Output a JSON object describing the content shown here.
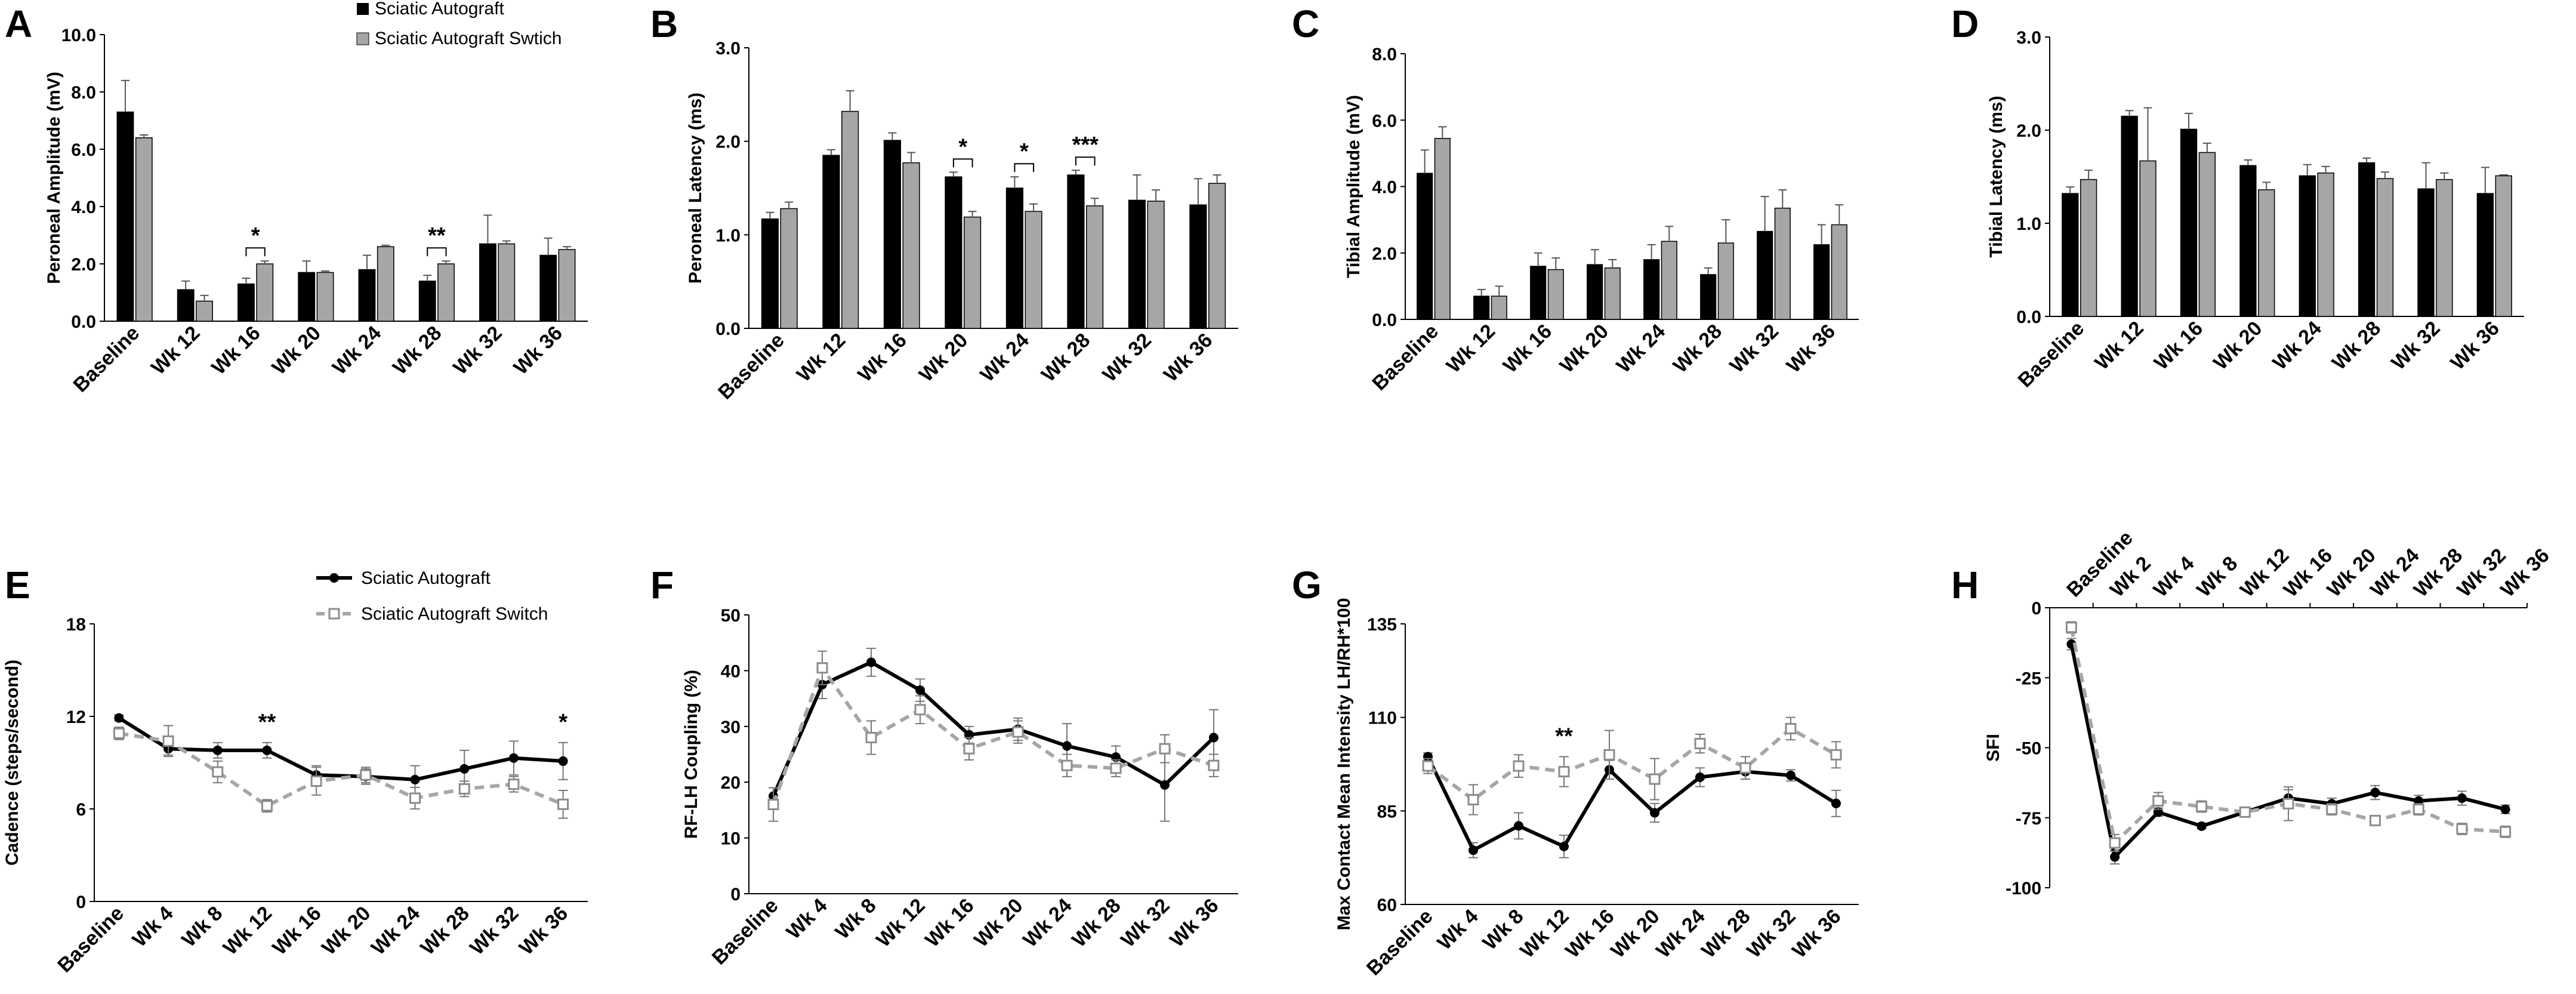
{
  "legend_top": {
    "series": [
      {
        "name": "Sciatic Autograft",
        "color": "#000000"
      },
      {
        "name": "Sciatic Autograft Swtich",
        "color": "#a6a6a6"
      }
    ]
  },
  "legend_bottom": {
    "series": [
      {
        "name": "Sciatic Autograft",
        "color": "#000000",
        "style": "solid-circle"
      },
      {
        "name": "Sciatic Autograft Switch",
        "color": "#a6a6a6",
        "style": "dashed-open-square"
      }
    ]
  },
  "chart_data": [
    {
      "panel": "A",
      "type": "bar",
      "ylabel": "Peroneal Amplitude (mV)",
      "ylim": [
        0,
        10
      ],
      "yticks": [
        0,
        2,
        4,
        6,
        8,
        10
      ],
      "ytick_labels": [
        "0.0",
        "2.0",
        "4.0",
        "6.0",
        "8.0",
        "10.0"
      ],
      "categories": [
        "Baseline",
        "Wk 12",
        "Wk 16",
        "Wk 20",
        "Wk 24",
        "Wk 28",
        "Wk 32",
        "Wk 36"
      ],
      "series": [
        {
          "name": "Sciatic Autograft",
          "values": [
            7.3,
            1.1,
            1.3,
            1.7,
            1.8,
            1.4,
            2.7,
            2.3
          ],
          "errors": [
            1.1,
            0.3,
            0.2,
            0.4,
            0.5,
            0.2,
            1.0,
            0.6
          ]
        },
        {
          "name": "Sciatic Autograft Swtich",
          "values": [
            6.4,
            0.7,
            2.0,
            1.7,
            2.6,
            2.0,
            2.7,
            2.5
          ],
          "errors": [
            0.1,
            0.2,
            0.1,
            0.05,
            0.05,
            0.1,
            0.1,
            0.1
          ]
        }
      ],
      "significance": [
        {
          "category_index": 2,
          "label": "*"
        },
        {
          "category_index": 5,
          "label": "**"
        }
      ]
    },
    {
      "panel": "B",
      "type": "bar",
      "ylabel": "Peroneal Latency (ms)",
      "ylim": [
        0,
        3
      ],
      "yticks": [
        0,
        1,
        2,
        3
      ],
      "ytick_labels": [
        "0.0",
        "1.0",
        "2.0",
        "3.0"
      ],
      "categories": [
        "Baseline",
        "Wk 12",
        "Wk 16",
        "Wk 20",
        "Wk 24",
        "Wk 28",
        "Wk 32",
        "Wk 36"
      ],
      "series": [
        {
          "name": "Sciatic Autograft",
          "values": [
            1.17,
            1.85,
            2.01,
            1.62,
            1.5,
            1.64,
            1.37,
            1.32
          ],
          "errors": [
            0.07,
            0.06,
            0.08,
            0.05,
            0.12,
            0.05,
            0.27,
            0.28
          ]
        },
        {
          "name": "Sciatic Autograft Swtich",
          "values": [
            1.28,
            2.32,
            1.77,
            1.19,
            1.25,
            1.31,
            1.36,
            1.55
          ],
          "errors": [
            0.07,
            0.22,
            0.11,
            0.06,
            0.08,
            0.08,
            0.12,
            0.09
          ]
        }
      ],
      "significance": [
        {
          "category_index": 3,
          "label": "*"
        },
        {
          "category_index": 4,
          "label": "*"
        },
        {
          "category_index": 5,
          "label": "***"
        }
      ]
    },
    {
      "panel": "C",
      "type": "bar",
      "ylabel": "Tibial Amplitude (mV)",
      "ylim": [
        0,
        8
      ],
      "yticks": [
        0,
        2,
        4,
        6,
        8
      ],
      "ytick_labels": [
        "0.0",
        "2.0",
        "4.0",
        "6.0",
        "8.0"
      ],
      "categories": [
        "Baseline",
        "Wk 12",
        "Wk 16",
        "Wk 20",
        "Wk 24",
        "Wk 28",
        "Wk 32",
        "Wk 36"
      ],
      "series": [
        {
          "name": "Sciatic Autograft",
          "values": [
            4.4,
            0.7,
            1.6,
            1.65,
            1.8,
            1.35,
            2.65,
            2.25
          ],
          "errors": [
            0.7,
            0.2,
            0.4,
            0.45,
            0.45,
            0.2,
            1.05,
            0.6
          ]
        },
        {
          "name": "Sciatic Autograft Swtich",
          "values": [
            5.45,
            0.7,
            1.5,
            1.55,
            2.35,
            2.3,
            3.35,
            2.85
          ],
          "errors": [
            0.35,
            0.3,
            0.35,
            0.25,
            0.45,
            0.7,
            0.55,
            0.6
          ]
        }
      ],
      "significance": []
    },
    {
      "panel": "D",
      "type": "bar",
      "ylabel": "Tibial Latency (ms)",
      "ylim": [
        0,
        3
      ],
      "yticks": [
        0,
        1,
        2,
        3
      ],
      "ytick_labels": [
        "0.0",
        "1.0",
        "2.0",
        "3.0"
      ],
      "categories": [
        "Baseline",
        "Wk 12",
        "Wk 16",
        "Wk 20",
        "Wk 24",
        "Wk 28",
        "Wk 32",
        "Wk 36"
      ],
      "series": [
        {
          "name": "Sciatic Autograft",
          "values": [
            1.32,
            2.15,
            2.01,
            1.62,
            1.51,
            1.65,
            1.37,
            1.32
          ],
          "errors": [
            0.07,
            0.06,
            0.17,
            0.06,
            0.12,
            0.05,
            0.28,
            0.28
          ]
        },
        {
          "name": "Sciatic Autograft Swtich",
          "values": [
            1.47,
            1.67,
            1.76,
            1.36,
            1.54,
            1.48,
            1.47,
            1.51
          ],
          "errors": [
            0.1,
            0.57,
            0.1,
            0.08,
            0.07,
            0.07,
            0.07,
            0.01
          ]
        }
      ],
      "significance": []
    },
    {
      "panel": "E",
      "type": "line",
      "ylabel": "Cadence  (steps/second)",
      "ylim": [
        0,
        18
      ],
      "yticks": [
        0,
        6,
        12,
        18
      ],
      "ytick_labels": [
        "0",
        "6",
        "12",
        "18"
      ],
      "categories": [
        "Baseline",
        "Wk 4",
        "Wk 8",
        "Wk 12",
        "Wk 16",
        "Wk 20",
        "Wk 24",
        "Wk 28",
        "Wk 32",
        "Wk 36"
      ],
      "series": [
        {
          "name": "Sciatic Autograft",
          "values": [
            11.9,
            9.9,
            9.8,
            9.8,
            8.2,
            8.1,
            7.9,
            8.6,
            9.3,
            9.1
          ],
          "errors": [
            0.2,
            0.4,
            0.5,
            0.5,
            0.6,
            0.5,
            0.9,
            1.2,
            1.1,
            1.2
          ]
        },
        {
          "name": "Sciatic Autograft Switch",
          "values": [
            10.9,
            10.4,
            8.4,
            6.2,
            7.8,
            8.2,
            6.7,
            7.3,
            7.6,
            6.3
          ],
          "errors": [
            0.4,
            1.0,
            0.7,
            0.4,
            0.9,
            0.5,
            0.7,
            0.5,
            0.5,
            0.9
          ]
        }
      ],
      "significance": [
        {
          "category_index": 3,
          "label": "**"
        },
        {
          "category_index": 9,
          "label": "*"
        }
      ]
    },
    {
      "panel": "F",
      "type": "line",
      "ylabel": "RF-LH Coupling (%)",
      "ylim": [
        0,
        50
      ],
      "yticks": [
        0,
        10,
        20,
        30,
        40,
        50
      ],
      "ytick_labels": [
        "0",
        "10",
        "20",
        "30",
        "40",
        "50"
      ],
      "categories": [
        "Baseline",
        "Wk 4",
        "Wk 8",
        "Wk 12",
        "Wk 16",
        "Wk 20",
        "Wk 24",
        "Wk 28",
        "Wk 32",
        "Wk 36"
      ],
      "series": [
        {
          "name": "Sciatic Autograft",
          "values": [
            17.5,
            37.5,
            41.5,
            36.5,
            28.5,
            29.5,
            26.5,
            24.5,
            19.5,
            28
          ],
          "errors": [
            1.5,
            2.5,
            2.5,
            2,
            1.5,
            2,
            4,
            2,
            6.5,
            5
          ]
        },
        {
          "name": "Sciatic Autograft Switch",
          "values": [
            16,
            40.5,
            28,
            33,
            26,
            29,
            23,
            22.5,
            26,
            23
          ],
          "errors": [
            3,
            3,
            3,
            2.5,
            2,
            2,
            2,
            1.5,
            2.5,
            2
          ]
        }
      ],
      "significance": []
    },
    {
      "panel": "G",
      "type": "line",
      "ylabel": "Max Contact Mean Intensity LH/RH*100",
      "ylim": [
        60,
        135
      ],
      "yticks": [
        60,
        85,
        110,
        135
      ],
      "ytick_labels": [
        "60",
        "85",
        "110",
        "135"
      ],
      "categories": [
        "Baseline",
        "Wk 4",
        "Wk 8",
        "Wk 12",
        "Wk 16",
        "Wk 20",
        "Wk 24",
        "Wk 28",
        "Wk 32",
        "Wk 36"
      ],
      "series": [
        {
          "name": "Sciatic Autograft",
          "values": [
            99.5,
            74.5,
            81,
            75.5,
            96,
            84.5,
            94,
            95.5,
            94.5,
            87
          ],
          "errors": [
            1,
            2,
            3.5,
            3,
            2.5,
            2.5,
            2.5,
            2,
            1.5,
            3.5
          ]
        },
        {
          "name": "Sciatic Autograft Switch",
          "values": [
            97,
            88,
            97,
            95.5,
            100,
            93.5,
            103,
            96.5,
            107,
            100
          ],
          "errors": [
            2,
            4,
            3,
            4,
            6.5,
            5.5,
            2.5,
            3,
            3,
            3.5
          ]
        }
      ],
      "significance": [
        {
          "category_index": 3,
          "label": "**"
        }
      ]
    },
    {
      "panel": "H",
      "type": "line",
      "ylabel": "SFI",
      "ylim": [
        -100,
        0
      ],
      "yticks": [
        0,
        -25,
        -50,
        -75,
        -100
      ],
      "ytick_labels": [
        "0",
        "-25",
        "-50",
        "-75",
        "-100"
      ],
      "x_axis_position": "top",
      "categories": [
        "Baseline",
        "Wk 2",
        "Wk 4",
        "Wk 8",
        "Wk 12",
        "Wk 16",
        "Wk 20",
        "Wk 24",
        "Wk 28",
        "Wk 32",
        "Wk 36"
      ],
      "series": [
        {
          "name": "Sciatic Autograft",
          "values": [
            -13,
            -89,
            -73,
            -78,
            -73,
            -68,
            -70,
            -66,
            -69,
            -68,
            -72
          ],
          "errors": [
            2,
            2.5,
            1.5,
            1,
            1,
            3,
            2,
            2.5,
            2,
            2.5,
            1.5
          ]
        },
        {
          "name": "Sciatic Autograft Switch",
          "values": [
            -7,
            -84,
            -69,
            -71,
            -73,
            -70,
            -72,
            -76,
            -72,
            -79,
            -80
          ],
          "errors": [
            2,
            3,
            3,
            2,
            1.5,
            6,
            2,
            1.5,
            2,
            2,
            2
          ]
        }
      ],
      "significance": []
    }
  ]
}
